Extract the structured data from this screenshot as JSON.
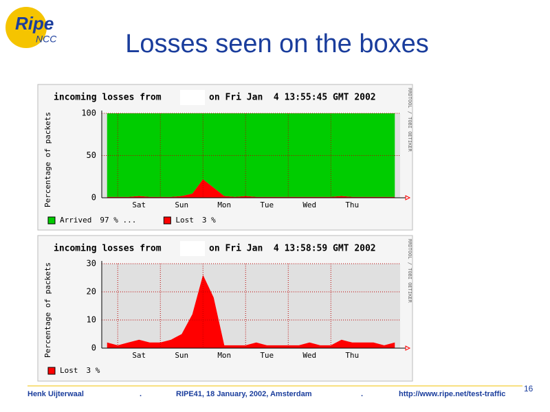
{
  "logo": {
    "text": "Ripe",
    "sub": "NCC"
  },
  "slide_title": "Losses seen on the boxes",
  "chart_data": [
    {
      "type": "stacked-area",
      "title": "incoming losses from",
      "title_end": "on Fri Jan  4 13:55:45 GMT 2002",
      "y_label": "Percentage of packets",
      "side_label": "RRDTOOL / TOBI OETIKER",
      "categories": [
        null,
        null,
        null,
        "Sat",
        null,
        null,
        null,
        "Sun",
        null,
        null,
        null,
        "Mon",
        null,
        null,
        null,
        "Tue",
        null,
        null,
        null,
        "Wed",
        null,
        null,
        null,
        "Thu",
        null,
        null,
        null,
        null
      ],
      "series": [
        {
          "name": "Lost",
          "legend_note": "3 %",
          "color": "#ff0000",
          "values": [
            1,
            1,
            1,
            2,
            1,
            1,
            1,
            2,
            5,
            22,
            12,
            2,
            1,
            2,
            1,
            1,
            1,
            1,
            1,
            1,
            1,
            1,
            2,
            1,
            1,
            1,
            1,
            1
          ]
        },
        {
          "name": "Arrived",
          "legend_note": "97 % ...",
          "color": "#00cc00",
          "values": [
            99,
            99,
            99,
            98,
            99,
            99,
            99,
            98,
            95,
            78,
            88,
            98,
            99,
            98,
            99,
            99,
            99,
            99,
            99,
            99,
            99,
            99,
            98,
            99,
            99,
            99,
            99,
            99
          ]
        }
      ],
      "legend_order": [
        1,
        0
      ],
      "ylim": [
        0,
        100
      ],
      "yticks": [
        0,
        50,
        100
      ],
      "grid": true
    },
    {
      "type": "stacked-area",
      "title": "incoming losses from",
      "title_end": "on Fri Jan  4 13:58:59 GMT 2002",
      "y_label": "Percentage of packets",
      "side_label": "RRDTOOL / TOBI OETIKER",
      "categories": [
        null,
        null,
        null,
        "Sat",
        null,
        null,
        null,
        "Sun",
        null,
        null,
        null,
        "Mon",
        null,
        null,
        null,
        "Tue",
        null,
        null,
        null,
        "Wed",
        null,
        null,
        null,
        "Thu",
        null,
        null,
        null,
        null
      ],
      "series": [
        {
          "name": "Lost",
          "legend_note": "3 %",
          "color": "#ff0000",
          "values": [
            2,
            1,
            2,
            3,
            2,
            2,
            3,
            5,
            12,
            26,
            18,
            1,
            1,
            1,
            2,
            1,
            1,
            1,
            1,
            2,
            1,
            1,
            3,
            2,
            2,
            2,
            1,
            2
          ]
        }
      ],
      "legend_order": [
        0
      ],
      "ylim": [
        0,
        30
      ],
      "yticks": [
        0,
        10,
        20,
        30
      ],
      "grid": true
    }
  ],
  "footer": {
    "author": "Henk Uijterwaal",
    "sep1": ".",
    "event": "RIPE41, 18 January, 2002, Amsterdam",
    "sep2": ".",
    "url": "http://www.ripe.net/test-traffic",
    "page": "16"
  }
}
